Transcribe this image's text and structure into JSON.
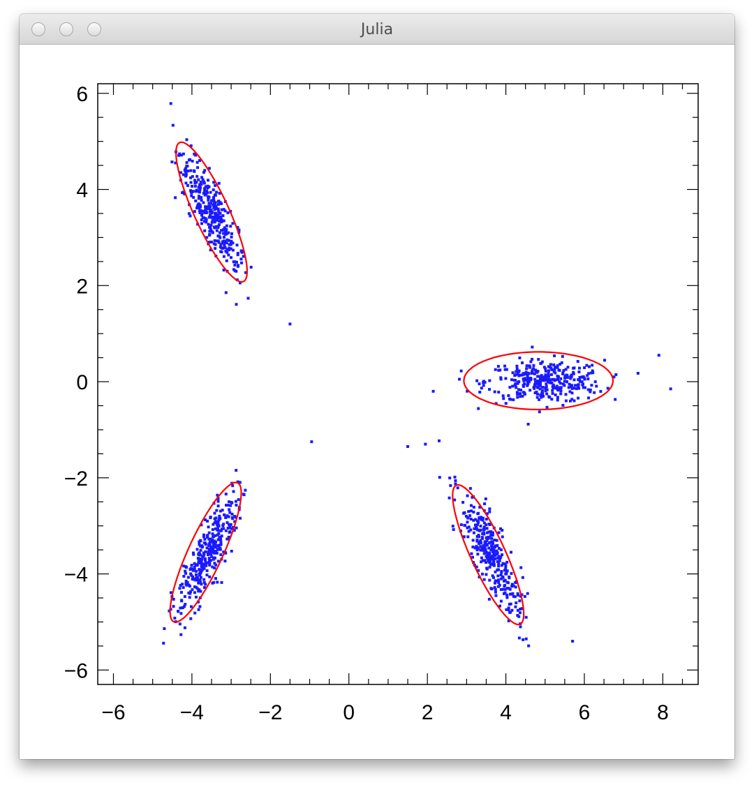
{
  "window": {
    "title": "Julia",
    "buttons": [
      "close",
      "minimize",
      "zoom"
    ]
  },
  "chart_data": {
    "type": "scatter",
    "title": "",
    "xlabel": "",
    "ylabel": "",
    "xlim": [
      -6.4,
      8.9
    ],
    "ylim": [
      -6.3,
      6.2
    ],
    "xticks": [
      -6,
      -4,
      -2,
      0,
      2,
      4,
      6,
      8
    ],
    "yticks": [
      -6,
      -4,
      -2,
      0,
      2,
      4,
      6
    ],
    "xtick_labels": [
      "−6",
      "−4",
      "−2",
      "0",
      "2",
      "4",
      "6",
      "8"
    ],
    "ytick_labels": [
      "−6",
      "−4",
      "−2",
      "0",
      "2",
      "4",
      "6"
    ],
    "grid": false,
    "colors": {
      "points": "#1a1aff",
      "ellipses": "#ff0000",
      "axes": "#000000"
    },
    "series": [
      {
        "kind": "points",
        "points_per_cluster": 350,
        "clusters": [
          {
            "center": [
              -3.5,
              3.5
            ],
            "direction": [
              0.49,
              -0.87
            ],
            "sd_major": 0.72,
            "sd_minor": 0.19
          },
          {
            "center": [
              5.0,
              0.0
            ],
            "direction": [
              1.0,
              0.0
            ],
            "sd_major": 0.75,
            "sd_minor": 0.22
          },
          {
            "center": [
              -3.6,
              -3.6
            ],
            "direction": [
              0.49,
              0.87
            ],
            "sd_major": 0.72,
            "sd_minor": 0.19
          },
          {
            "center": [
              3.6,
              -3.6
            ],
            "direction": [
              0.49,
              -0.87
            ],
            "sd_major": 0.72,
            "sd_minor": 0.19
          }
        ],
        "outliers": [
          [
            -0.95,
            -1.25
          ],
          [
            1.5,
            -1.35
          ],
          [
            1.95,
            -1.3
          ],
          [
            2.15,
            -0.2
          ],
          [
            8.2,
            -0.15
          ],
          [
            7.9,
            0.55
          ],
          [
            -1.5,
            1.2
          ],
          [
            5.7,
            -5.4
          ]
        ]
      },
      {
        "kind": "ellipses",
        "items": [
          {
            "center": [
              -3.5,
              3.53
            ],
            "semi_major": 1.66,
            "semi_minor": 0.42,
            "angle_deg": -60
          },
          {
            "center": [
              4.83,
              0.02
            ],
            "semi_major": 1.9,
            "semi_minor": 0.6,
            "angle_deg": 0
          },
          {
            "center": [
              -3.65,
              -3.55
            ],
            "semi_major": 1.66,
            "semi_minor": 0.42,
            "angle_deg": 60
          },
          {
            "center": [
              3.55,
              -3.6
            ],
            "semi_major": 1.66,
            "semi_minor": 0.42,
            "angle_deg": -60
          }
        ]
      }
    ]
  }
}
